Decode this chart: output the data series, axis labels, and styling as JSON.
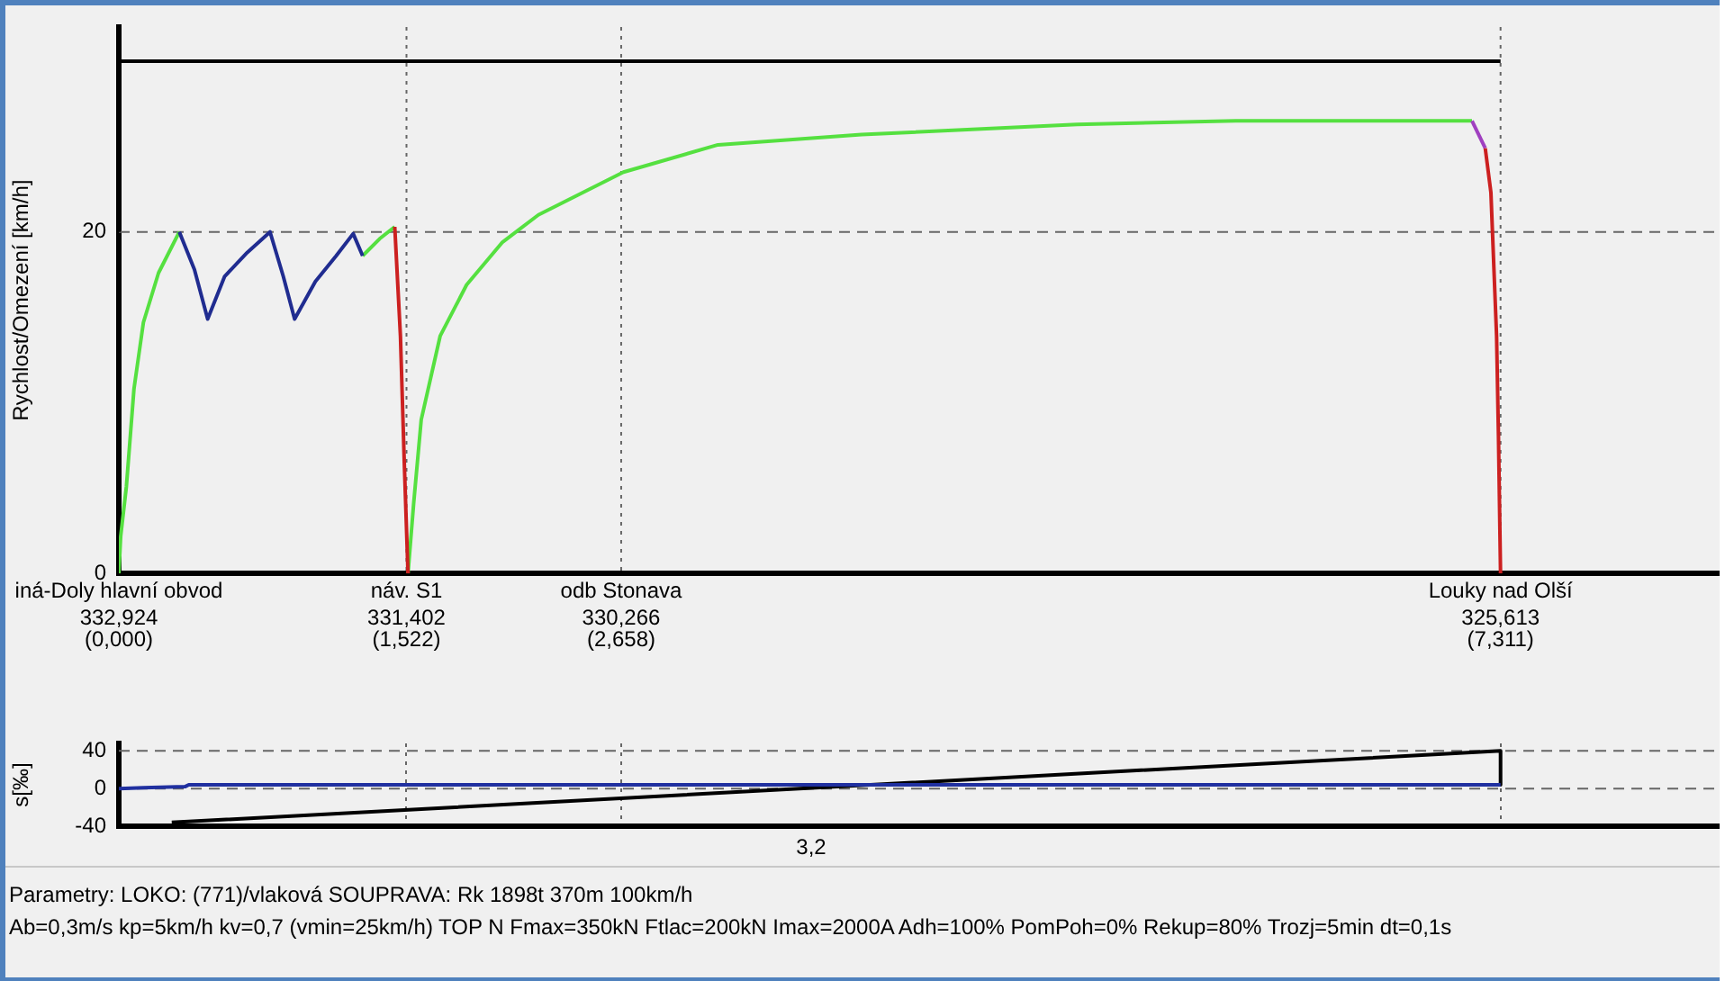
{
  "chart_data": [
    {
      "type": "line",
      "ylabel": "Rychlost/Omezení [km/h]",
      "xlim": [
        0,
        8.47
      ],
      "ylim": [
        0,
        32
      ],
      "yticks": [
        0,
        20
      ],
      "xticks": [
        {
          "value": 0,
          "label": "(0,000)"
        },
        {
          "value": 1.522,
          "label": "(1,522)"
        },
        {
          "value": 2.658,
          "label": "(2,658)"
        },
        {
          "value": 7.311,
          "label": "(7,311)"
        }
      ],
      "ref_lines": [
        {
          "axis": "y",
          "value": 20,
          "line_style": "dashed"
        },
        {
          "axis": "x",
          "value": 1.522,
          "label": "náv. S1\n331,402"
        },
        {
          "axis": "x",
          "value": 2.658,
          "label": "odb Stonava\n330,266"
        },
        {
          "axis": "x",
          "value": 7.311,
          "label": "Louky nad Olší\n325,613"
        }
      ],
      "annotations": [
        "iná-Doly hlavní obvod\n332,924"
      ],
      "legend": false,
      "marker": "none",
      "line_style": "solid",
      "series": [
        {
          "type": "step",
          "color": "#000000",
          "x": [
            0,
            0.91,
            7.311
          ],
          "values": [
            20,
            30,
            30
          ]
        },
        {
          "color": "#202c90",
          "x": [
            0.32,
            0.4,
            0.47,
            0.56,
            0.68,
            0.8,
            0.87,
            0.93,
            1.04,
            1.15,
            1.24,
            1.29
          ],
          "values": [
            20,
            17.8,
            14.9,
            17.4,
            18.8,
            20,
            17.4,
            14.9,
            17.1,
            18.6,
            19.9,
            18.6
          ]
        },
        {
          "color": "#cc2020",
          "x": [
            1.46,
            1.49,
            1.51,
            1.53,
            null,
            7.23,
            7.26,
            7.29,
            7.3,
            7.311
          ],
          "values": [
            20.3,
            13.9,
            6.6,
            0,
            null,
            24.9,
            22.3,
            13.9,
            8,
            0
          ]
        },
        {
          "color": "#a040c0",
          "x": [
            7.16,
            7.23
          ],
          "values": [
            26.5,
            24.9
          ]
        },
        {
          "color": "#55e040",
          "x": [
            0,
            0.01,
            0.04,
            0.08,
            0.13,
            0.21,
            0.32,
            null,
            1.53,
            1.56,
            1.6,
            1.7,
            1.84,
            2.03,
            2.22,
            2.67,
            3.17,
            3.93,
            5.07,
            5.91,
            7.16
          ],
          "values": [
            0,
            2.2,
            5.1,
            10.8,
            14.7,
            17.6,
            20,
            null,
            0,
            4.1,
            9,
            13.9,
            16.9,
            19.4,
            21,
            23.5,
            25.1,
            25.7,
            26.3,
            26.5,
            26.5
          ]
        },
        {
          "color": "#55e040",
          "x": [
            1.29,
            1.38,
            1.46
          ],
          "values": [
            18.6,
            19.6,
            20.3
          ]
        }
      ]
    },
    {
      "type": "line",
      "ylabel": "s[‰]",
      "xlim": [
        0,
        8.47
      ],
      "ylim": [
        -40,
        48
      ],
      "yticks": [
        -40,
        0,
        40
      ],
      "xticks": [
        {
          "value": 0,
          "label": null
        },
        {
          "value": 1.522,
          "label": null
        },
        {
          "value": 2.658,
          "label": null
        },
        {
          "value": 7.311,
          "label": null
        }
      ],
      "ref_lines": [
        {
          "axis": "y",
          "value": 40,
          "line_style": "dashed"
        },
        {
          "axis": "y",
          "value": 0,
          "line_style": "dashed"
        }
      ],
      "tick_labels": "y",
      "grid": "x",
      "legend": false,
      "marker": "none",
      "line_style": "solid",
      "annotations": [
        "3,2",
        "Parametry: LOKO: (771)/vlaková SOUPRAVA: Rk 1898t 370m 100km/h",
        "Ab=0,3m/s kp=5km/h kv=0,7 (vmin=25km/h) TOP N Fmax=350kN Ftlac=200kN Imax=2000A Adh=100% PomPoh=0% Rekup=80% Trozj=5min dt=0,1s"
      ],
      "series": [
        {
          "color": "#2030a0",
          "x": [
            0,
            0.13,
            0.35,
            0.37,
            7.311
          ],
          "values": [
            0,
            1,
            2,
            4,
            4
          ]
        },
        {
          "color": "#000000",
          "x": [
            0.28,
            7.311,
            7.311
          ],
          "values": [
            -36,
            40,
            4
          ]
        }
      ]
    }
  ]
}
